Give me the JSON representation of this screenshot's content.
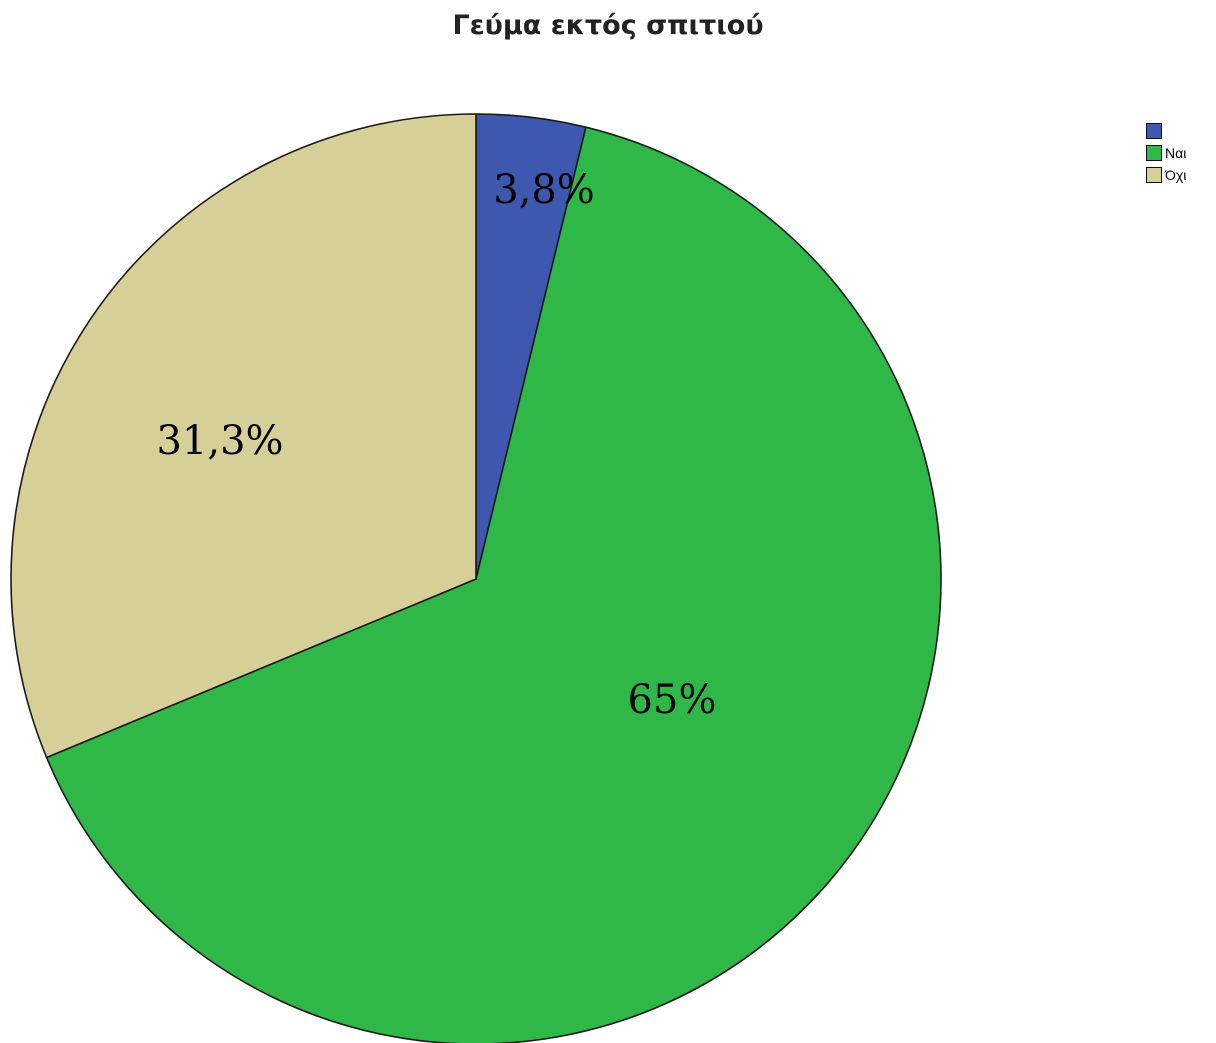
{
  "chart_data": {
    "type": "pie",
    "title": "Γεύμα εκτός σπιτιού",
    "slices": [
      {
        "label": "",
        "value": 3.8,
        "display": "3,8%",
        "color": "#3e58b0"
      },
      {
        "label": "Ναι",
        "value": 65.0,
        "display": "65%",
        "color": "#2fb847"
      },
      {
        "label": "Όχι",
        "value": 31.3,
        "display": "31,3%",
        "color": "#d6cf98"
      }
    ],
    "start_angle_deg": 0,
    "direction": "clockwise",
    "legend_position": "top-right"
  }
}
